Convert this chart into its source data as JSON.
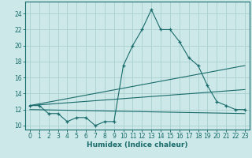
{
  "xlabel": "Humidex (Indice chaleur)",
  "bg_color": "#cce8e8",
  "line_color": "#1a6b6b",
  "grid_color": "#aad0d0",
  "xlim": [
    -0.5,
    23.5
  ],
  "ylim": [
    9.5,
    25.5
  ],
  "yticks": [
    10,
    12,
    14,
    16,
    18,
    20,
    22,
    24
  ],
  "xticks": [
    0,
    1,
    2,
    3,
    4,
    5,
    6,
    7,
    8,
    9,
    10,
    11,
    12,
    13,
    14,
    15,
    16,
    17,
    18,
    19,
    20,
    21,
    22,
    23
  ],
  "main_x": [
    0,
    1,
    2,
    3,
    4,
    5,
    6,
    7,
    8,
    9,
    10,
    11,
    12,
    13,
    14,
    15,
    16,
    17,
    18,
    19,
    20,
    21,
    22,
    23
  ],
  "main_y": [
    12.5,
    12.5,
    11.5,
    11.5,
    10.5,
    11.0,
    11.0,
    10.0,
    10.5,
    10.5,
    17.5,
    20.0,
    22.0,
    24.5,
    22.0,
    22.0,
    20.5,
    18.5,
    17.5,
    15.0,
    13.0,
    12.5,
    12.0,
    12.0
  ],
  "line1_x": [
    0,
    23
  ],
  "line1_y": [
    12.5,
    17.5
  ],
  "line2_x": [
    0,
    23
  ],
  "line2_y": [
    12.5,
    14.5
  ],
  "line3_x": [
    0,
    23
  ],
  "line3_y": [
    12.0,
    11.5
  ],
  "xlabel_fontsize": 6.5,
  "tick_fontsize": 5.5
}
